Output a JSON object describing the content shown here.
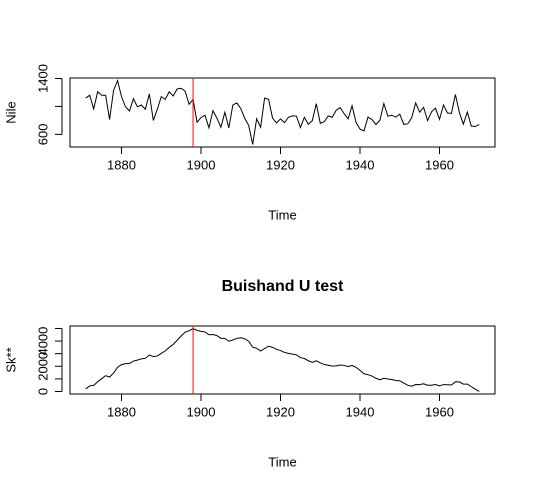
{
  "chart_data": [
    {
      "type": "line",
      "ylabel": "Nile",
      "xlabel": "Time",
      "x": [
        1871,
        1872,
        1873,
        1874,
        1875,
        1876,
        1877,
        1878,
        1879,
        1880,
        1881,
        1882,
        1883,
        1884,
        1885,
        1886,
        1887,
        1888,
        1889,
        1890,
        1891,
        1892,
        1893,
        1894,
        1895,
        1896,
        1897,
        1898,
        1899,
        1900,
        1901,
        1902,
        1903,
        1904,
        1905,
        1906,
        1907,
        1908,
        1909,
        1910,
        1911,
        1912,
        1913,
        1914,
        1915,
        1916,
        1917,
        1918,
        1919,
        1920,
        1921,
        1922,
        1923,
        1924,
        1925,
        1926,
        1927,
        1928,
        1929,
        1930,
        1931,
        1932,
        1933,
        1934,
        1935,
        1936,
        1937,
        1938,
        1939,
        1940,
        1941,
        1942,
        1943,
        1944,
        1945,
        1946,
        1947,
        1948,
        1949,
        1950,
        1951,
        1952,
        1953,
        1954,
        1955,
        1956,
        1957,
        1958,
        1959,
        1960,
        1961,
        1962,
        1963,
        1964,
        1965,
        1966,
        1967,
        1968,
        1969,
        1970
      ],
      "series": [
        {
          "color": "#000000",
          "values": [
            1120,
            1160,
            963,
            1210,
            1160,
            1160,
            813,
            1230,
            1370,
            1140,
            995,
            935,
            1110,
            994,
            1020,
            960,
            1180,
            799,
            958,
            1140,
            1100,
            1210,
            1150,
            1250,
            1260,
            1220,
            1030,
            1100,
            774,
            840,
            874,
            694,
            940,
            833,
            701,
            916,
            692,
            1020,
            1050,
            969,
            831,
            726,
            456,
            824,
            702,
            1120,
            1100,
            832,
            764,
            821,
            768,
            845,
            864,
            862,
            698,
            845,
            744,
            796,
            1040,
            759,
            781,
            865,
            845,
            944,
            984,
            897,
            822,
            1010,
            771,
            676,
            649,
            846,
            812,
            742,
            801,
            1040,
            860,
            874,
            848,
            890,
            744,
            749,
            838,
            1050,
            918,
            986,
            797,
            923,
            975,
            815,
            1020,
            906,
            901,
            1170,
            912,
            746,
            919,
            718,
            714,
            740
          ]
        }
      ],
      "xlim": [
        1867.04,
        1973.96
      ],
      "xticks": [
        1880,
        1900,
        1920,
        1940,
        1960
      ],
      "ylim": [
        419.4,
        1406.6
      ],
      "yticks": [
        600,
        1000,
        1400
      ],
      "changepoint": 1898,
      "changepoint_color": "#ff0000"
    },
    {
      "type": "line",
      "title": "Buishand U test",
      "ylabel": "Sk**",
      "xlabel": "Time",
      "x": [
        1871,
        1872,
        1873,
        1874,
        1875,
        1876,
        1877,
        1878,
        1879,
        1880,
        1881,
        1882,
        1883,
        1884,
        1885,
        1886,
        1887,
        1888,
        1889,
        1890,
        1891,
        1892,
        1893,
        1894,
        1895,
        1896,
        1897,
        1898,
        1899,
        1900,
        1901,
        1902,
        1903,
        1904,
        1905,
        1906,
        1907,
        1908,
        1909,
        1910,
        1911,
        1912,
        1913,
        1914,
        1915,
        1916,
        1917,
        1918,
        1919,
        1920,
        1921,
        1922,
        1923,
        1924,
        1925,
        1926,
        1927,
        1928,
        1929,
        1930,
        1931,
        1932,
        1933,
        1934,
        1935,
        1936,
        1937,
        1938,
        1939,
        1940,
        1941,
        1942,
        1943,
        1944,
        1945,
        1946,
        1947,
        1948,
        1949,
        1950,
        1951,
        1952,
        1953,
        1954,
        1955,
        1956,
        1957,
        1958,
        1959,
        1960,
        1961,
        1962,
        1963,
        1964,
        1965,
        1966,
        1967,
        1968,
        1969,
        1970
      ],
      "series": [
        {
          "color": "#000000",
          "values": [
            201,
            441,
            485,
            776,
            1017,
            1258,
            1151,
            1462,
            1912,
            2133,
            2209,
            2225,
            2415,
            2490,
            2591,
            2631,
            2892,
            2772,
            2810,
            3031,
            3212,
            3502,
            3733,
            4064,
            4404,
            4705,
            4816,
            4996,
            4851,
            4771,
            4726,
            4501,
            4521,
            4435,
            4217,
            4213,
            3986,
            4087,
            4217,
            4267,
            4179,
            3985,
            3522,
            3427,
            3209,
            3410,
            3590,
            3503,
            3348,
            3249,
            3098,
            3024,
            2968,
            2911,
            2690,
            2615,
            2440,
            2317,
            2437,
            2277,
            2138,
            2084,
            2010,
            2034,
            2099,
            2077,
            1979,
            2070,
            1922,
            1678,
            1408,
            1335,
            1227,
            1050,
            932,
            1052,
            993,
            948,
            876,
            847,
            672,
            501,
            420,
            551,
            549,
            616,
            494,
            497,
            553,
            449,
            549,
            536,
            518,
            768,
            761,
            588,
            587,
            386,
            180,
            1
          ]
        }
      ],
      "xlim": [
        1867.04,
        1973.96
      ],
      "xticks": [
        1880,
        1900,
        1920,
        1940,
        1960
      ],
      "ylim": [
        -198.8,
        5195.8
      ],
      "yticks": [
        0,
        1000,
        2000,
        3000,
        4000,
        5000
      ],
      "changepoint": 1898,
      "changepoint_color": "#ff0000"
    }
  ]
}
